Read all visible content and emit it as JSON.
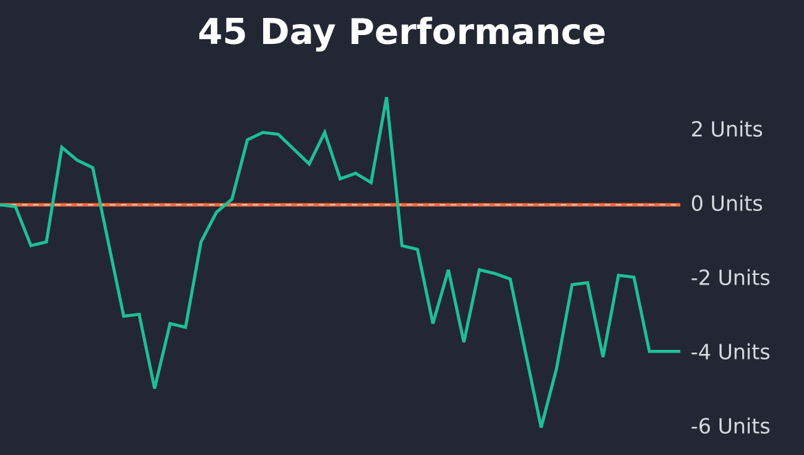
{
  "chart_data": {
    "type": "line",
    "title": "45 Day Performance",
    "series": [
      {
        "color": "#1fbf95",
        "values": [
          0,
          -0.05,
          -1.1,
          -1.0,
          1.55,
          1.2,
          1.0,
          -1.0,
          -3.0,
          -2.95,
          -4.95,
          -3.2,
          -3.3,
          -1.0,
          -0.2,
          0.15,
          1.75,
          1.95,
          1.9,
          1.5,
          1.1,
          1.95,
          0.7,
          0.85,
          0.6,
          2.9,
          -1.1,
          -1.2,
          -3.2,
          -1.75,
          -3.7,
          -1.75,
          -1.85,
          -2.0,
          -4.0,
          -6.0,
          -4.4,
          -2.15,
          -2.1,
          -4.1,
          -1.9,
          -1.95,
          -3.95,
          -3.95,
          -3.95
        ]
      }
    ],
    "reference_line": {
      "value": 0,
      "color": "#f26a3c"
    },
    "ylim": [
      -6.5,
      3.3
    ],
    "yticks": [
      {
        "value": 2,
        "label": "2 Units"
      },
      {
        "value": 0,
        "label": "0 Units"
      },
      {
        "value": -2,
        "label": "-2 Units"
      },
      {
        "value": -4,
        "label": "-4 Units"
      },
      {
        "value": -6,
        "label": "-6 Units"
      }
    ]
  }
}
